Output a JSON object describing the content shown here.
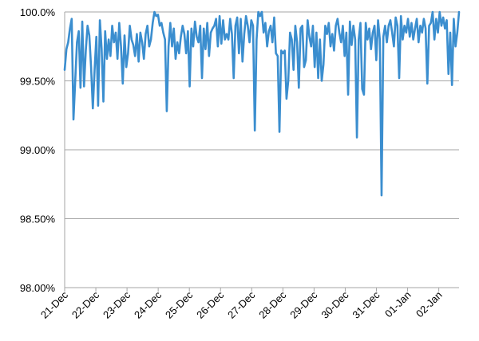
{
  "chart_data": {
    "type": "line",
    "title": "",
    "xlabel": "",
    "ylabel": "",
    "ylim": [
      0.98,
      1.0
    ],
    "y_ticks": [
      "98.00%",
      "98.50%",
      "99.00%",
      "99.50%",
      "100.0%"
    ],
    "y_tick_values": [
      0.98,
      0.985,
      0.99,
      0.995,
      1.0
    ],
    "x_ticks": [
      "21-Dec",
      "22-Dec",
      "23-Dec",
      "24-Dec",
      "25-Dec",
      "26-Dec",
      "27-Dec",
      "28-Dec",
      "29-Dec",
      "30-Dec",
      "31-Dec",
      "01-Jan",
      "02-Jan"
    ],
    "grid": "horizontal",
    "line_color": "#3b8ecf",
    "grid_color": "#a6a6a6",
    "series": [
      {
        "values": [
          0.9958,
          0.9973,
          0.9978,
          0.9988,
          0.9995,
          0.9922,
          0.995,
          0.9978,
          0.9986,
          0.9945,
          0.9993,
          0.9946,
          0.9972,
          0.999,
          0.9983,
          0.996,
          0.993,
          0.9958,
          0.9982,
          0.9932,
          0.9994,
          0.9973,
          0.9935,
          0.9986,
          0.9966,
          0.998,
          0.9968,
          0.999,
          0.9978,
          0.9985,
          0.9966,
          0.9992,
          0.9975,
          0.9948,
          0.9983,
          0.996,
          0.997,
          0.999,
          0.998,
          0.9976,
          0.9968,
          0.9984,
          0.9964,
          0.9985,
          0.9978,
          0.9966,
          0.9984,
          0.999,
          0.9975,
          0.998,
          0.9992,
          1.0,
          0.9997,
          0.9998,
          0.999,
          0.9992,
          0.9985,
          0.998,
          0.9928,
          0.9975,
          0.9992,
          0.9975,
          0.9988,
          0.9966,
          0.9978,
          0.997,
          0.9982,
          0.999,
          0.9984,
          0.997,
          0.9986,
          0.9946,
          0.9988,
          0.9975,
          0.9993,
          0.9982,
          0.9978,
          0.999,
          0.9952,
          0.9988,
          0.9973,
          0.9992,
          0.9968,
          0.9985,
          0.9988,
          0.999,
          0.9995,
          0.9975,
          0.9997,
          0.9977,
          0.9994,
          0.998,
          0.9984,
          0.998,
          0.9995,
          0.9984,
          0.9952,
          0.999,
          0.9996,
          0.997,
          0.9995,
          0.9964,
          0.9984,
          0.9997,
          0.999,
          0.9978,
          0.9994,
          0.999,
          0.9914,
          0.998,
          1.0,
          0.9997,
          1.0,
          0.9985,
          0.9992,
          0.9975,
          0.9986,
          0.999,
          0.9978,
          0.9996,
          0.997,
          0.9968,
          0.9913,
          0.9972,
          0.997,
          0.9972,
          0.9937,
          0.995,
          0.9985,
          0.998,
          0.9958,
          0.999,
          0.9978,
          0.9945,
          0.9988,
          0.999,
          0.996,
          0.9965,
          0.9994,
          0.9982,
          0.9975,
          0.999,
          0.996,
          0.9985,
          0.9952,
          0.998,
          0.995,
          0.9962,
          0.999,
          0.9984,
          0.9992,
          0.9975,
          0.9984,
          0.9972,
          0.999,
          0.9995,
          0.9985,
          0.9978,
          0.999,
          0.9968,
          0.9985,
          0.994,
          0.9993,
          0.9976,
          0.999,
          0.998,
          0.9909,
          0.998,
          0.9992,
          0.9944,
          0.994,
          0.9992,
          0.998,
          0.9988,
          0.9973,
          0.9985,
          0.999,
          0.9965,
          0.9994,
          0.998,
          0.9867,
          0.9982,
          0.999,
          0.9978,
          0.999,
          0.9994,
          0.9985,
          0.9975,
          0.9996,
          0.999,
          0.9952,
          0.9997,
          0.998,
          0.999,
          0.9985,
          0.9995,
          0.9982,
          0.9992,
          0.998,
          0.9988,
          0.9995,
          0.9978,
          0.999,
          0.9985,
          0.9995,
          0.9988,
          0.9948,
          0.999,
          0.9992,
          1.0,
          0.998,
          0.9995,
          0.9985,
          1.0,
          0.999,
          0.9996,
          0.9988,
          0.9994,
          0.9955,
          0.9985,
          0.9947,
          0.9995,
          0.9975,
          0.9985,
          1.0
        ]
      }
    ]
  }
}
